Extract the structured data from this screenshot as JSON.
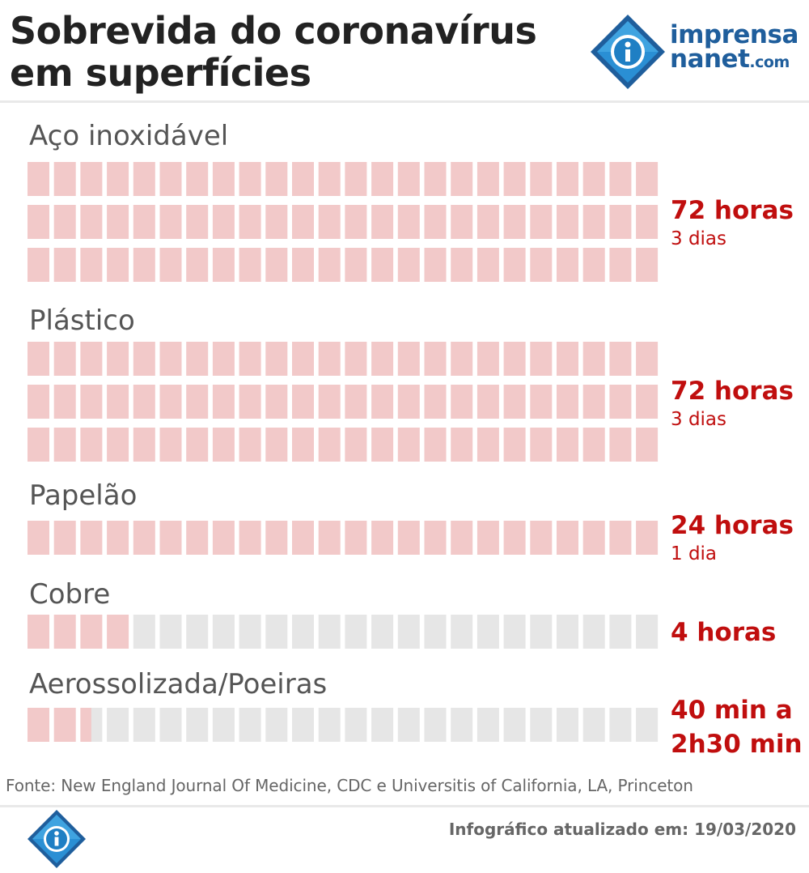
{
  "header": {
    "title_line1": "Sobrevida do coronavírus",
    "title_line2": "em superfícies",
    "logo_line1": "imprensa",
    "logo_line2_a": "nanet",
    "logo_line2_b": ".com"
  },
  "colors": {
    "filled": "#f2c9c9",
    "empty": "#e6e6e6",
    "value_text": "#c00e0e",
    "label_text": "#555555",
    "logo_blue": "#1f5e9c"
  },
  "chart_data": {
    "type": "bar",
    "unit_cells_per_row": 24,
    "categories": [
      "Aço inoxidável",
      "Plástico",
      "Papelão",
      "Cobre",
      "Aerossolizada/Poeiras"
    ],
    "values_hours": [
      72,
      72,
      24,
      4,
      2.5
    ],
    "items": [
      {
        "label": "Aço inoxidável",
        "hours": 72,
        "rows": 3,
        "value": "72 horas",
        "sub": "3 dias"
      },
      {
        "label": "Plástico",
        "hours": 72,
        "rows": 3,
        "value": "72 horas",
        "sub": "3 dias"
      },
      {
        "label": "Papelão",
        "hours": 24,
        "rows": 1,
        "value": "24 horas",
        "sub": "1 dia"
      },
      {
        "label": "Cobre",
        "hours": 4,
        "rows": 1,
        "value": "4 horas",
        "sub": ""
      },
      {
        "label": "Aerossolizada/Poeiras",
        "hours": 2.5,
        "rows": 1,
        "value_line1": "40 min a",
        "value_line2": "2h30 min",
        "sub": ""
      }
    ]
  },
  "footer": {
    "source": "Fonte: New England Journal Of Medicine, CDC e Universitis of California, LA, Princeton",
    "updated": "Infográfico atualizado em: 19/03/2020"
  }
}
